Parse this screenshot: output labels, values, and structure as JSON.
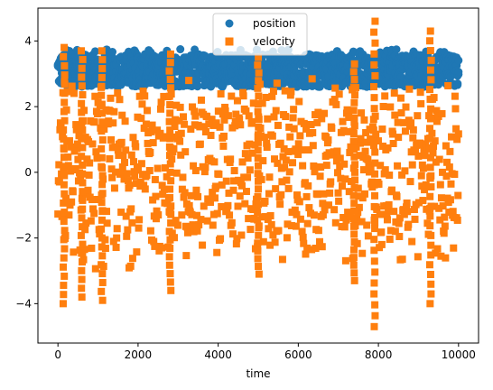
{
  "chart_data": {
    "type": "scatter",
    "xlabel": "time",
    "ylabel": "",
    "xlim": [
      -500,
      10500
    ],
    "ylim": [
      -5.2,
      5.0
    ],
    "x_ticks": [
      0,
      2000,
      4000,
      6000,
      8000,
      10000
    ],
    "x_tick_labels": [
      "0",
      "2000",
      "4000",
      "6000",
      "8000",
      "10000"
    ],
    "y_ticks": [
      -4,
      -2,
      0,
      2,
      4
    ],
    "y_tick_labels": [
      "−4",
      "−2",
      "0",
      "2",
      "4"
    ],
    "legend_position": "top-center",
    "series": [
      {
        "name": "position",
        "marker": "circle",
        "color": "#1f77b4",
        "x_range": [
          0,
          10000
        ],
        "band": [
          2.6,
          3.6
        ],
        "note_peaks": [
          3.75
        ]
      },
      {
        "name": "velocity",
        "marker": "square",
        "color": "#ff7f0e",
        "x_range": [
          0,
          10000
        ],
        "band": [
          -3.0,
          3.0
        ],
        "spikes": [
          {
            "x": 150,
            "low": -4.0,
            "high": 3.8
          },
          {
            "x": 600,
            "low": -3.8,
            "high": 3.7
          },
          {
            "x": 1100,
            "low": -3.9,
            "high": 3.7
          },
          {
            "x": 2800,
            "low": -3.6,
            "high": 3.6
          },
          {
            "x": 5000,
            "low": -3.1,
            "high": 3.5
          },
          {
            "x": 7400,
            "low": -3.3,
            "high": 3.3
          },
          {
            "x": 7900,
            "low": -4.7,
            "high": 4.6
          },
          {
            "x": 9300,
            "low": -4.0,
            "high": 4.3
          }
        ]
      }
    ]
  }
}
